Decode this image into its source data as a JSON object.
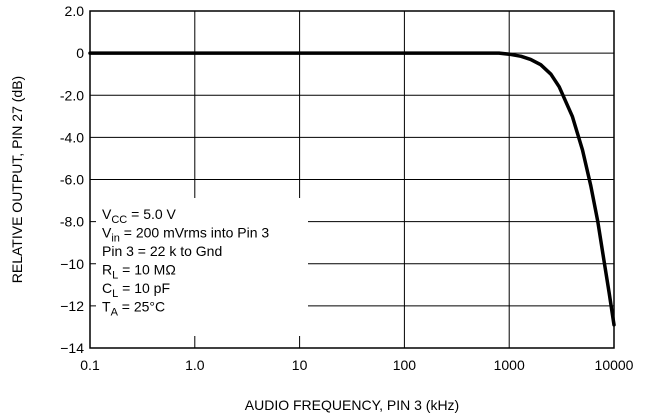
{
  "chart_data": {
    "type": "line",
    "xlabel": "AUDIO FREQUENCY, PIN 3 (kHz)",
    "ylabel": "RELATIVE OUTPUT, PIN 27 (dB)",
    "x_scale": "log",
    "xlim": [
      0.1,
      10000
    ],
    "ylim": [
      -14,
      2
    ],
    "grid": true,
    "x_ticks": [
      {
        "value": 0.1,
        "label": "0.1"
      },
      {
        "value": 1,
        "label": "1.0"
      },
      {
        "value": 10,
        "label": "10"
      },
      {
        "value": 100,
        "label": "100"
      },
      {
        "value": 1000,
        "label": "1000"
      },
      {
        "value": 10000,
        "label": "10000"
      }
    ],
    "y_ticks": [
      {
        "value": 2,
        "label": "2.0"
      },
      {
        "value": 0,
        "label": "0"
      },
      {
        "value": -2,
        "label": "-2.0"
      },
      {
        "value": -4,
        "label": "-4.0"
      },
      {
        "value": -6,
        "label": "-6.0"
      },
      {
        "value": -8,
        "label": "-8.0"
      },
      {
        "value": -10,
        "label": "−10"
      },
      {
        "value": -12,
        "label": "−12"
      },
      {
        "value": -14,
        "label": "−14"
      }
    ],
    "series": [
      {
        "x": [
          0.1,
          1,
          10,
          100,
          800,
          1000,
          1300,
          1600,
          2000,
          2500,
          3000,
          4000,
          5000,
          6000,
          7000,
          8000,
          9000,
          10000
        ],
        "y": [
          0,
          0,
          0,
          0,
          0,
          -0.05,
          -0.15,
          -0.3,
          -0.55,
          -1.0,
          -1.6,
          -3.0,
          -4.6,
          -6.3,
          -8.0,
          -9.8,
          -11.4,
          -12.9
        ]
      }
    ],
    "annotations": [
      [
        {
          "t": "V"
        },
        {
          "t": "CC",
          "sub": true
        },
        {
          "t": " = 5.0 V"
        }
      ],
      [
        {
          "t": "V"
        },
        {
          "t": "in",
          "sub": true
        },
        {
          "t": " = 200 mVrms into Pin 3"
        }
      ],
      [
        {
          "t": "Pin 3 = 22 k to Gnd"
        }
      ],
      [
        {
          "t": "R"
        },
        {
          "t": "L",
          "sub": true
        },
        {
          "t": " = 10 MΩ"
        }
      ],
      [
        {
          "t": "C"
        },
        {
          "t": "L",
          "sub": true
        },
        {
          "t": " = 10 pF"
        }
      ],
      [
        {
          "t": "T"
        },
        {
          "t": "A",
          "sub": true
        },
        {
          "t": " = 25°C"
        }
      ]
    ]
  }
}
